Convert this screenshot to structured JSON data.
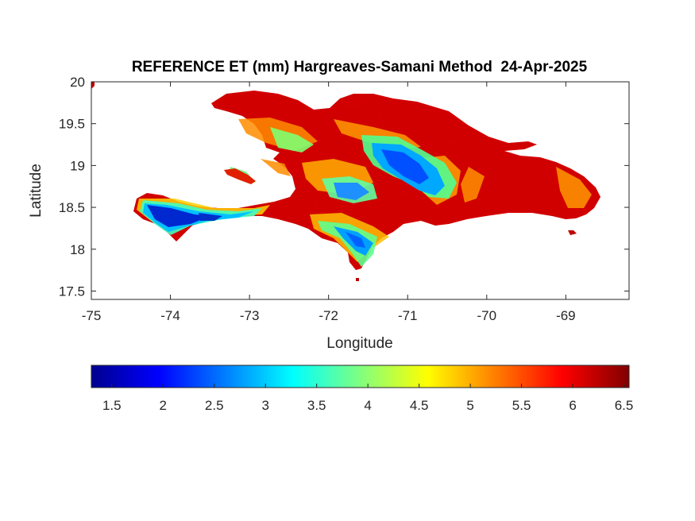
{
  "title": "REFERENCE ET (mm) Hargreaves-Samani Method  24-Apr-2025",
  "map": {
    "xlabel": "Longitude",
    "ylabel": "Latitude",
    "xlim": [
      -75,
      -68.2
    ],
    "ylim": [
      17.4,
      20
    ],
    "xticks": [
      "-75",
      "-74",
      "-73",
      "-72",
      "-71",
      "-70",
      "-69"
    ],
    "xtick_values": [
      -75,
      -74,
      -73,
      -72,
      -71,
      -70,
      -69
    ],
    "yticks": [
      "20",
      "19.5",
      "19",
      "18.5",
      "18",
      "17.5"
    ],
    "ytick_values": [
      20,
      19.5,
      19,
      18.5,
      18,
      17.5
    ]
  },
  "colorbar": {
    "colormap": "jet",
    "range": [
      1.3,
      6.55
    ],
    "ticks": [
      "1.5",
      "2",
      "2.5",
      "3",
      "3.5",
      "4",
      "4.5",
      "5",
      "5.5",
      "6",
      "6.5"
    ],
    "tick_values": [
      1.5,
      2,
      2.5,
      3,
      3.5,
      4,
      4.5,
      5,
      5.5,
      6,
      6.5
    ]
  }
}
